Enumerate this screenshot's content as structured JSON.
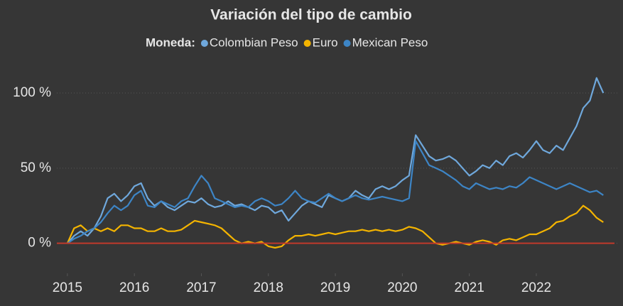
{
  "chart_data": {
    "type": "line",
    "title": "Variación del tipo de cambio",
    "legend_title": "Moneda:",
    "x": [
      2015.0,
      2015.1,
      2015.2,
      2015.3,
      2015.4,
      2015.5,
      2015.6,
      2015.7,
      2015.8,
      2015.9,
      2016.0,
      2016.1,
      2016.2,
      2016.3,
      2016.4,
      2016.5,
      2016.6,
      2016.7,
      2016.8,
      2016.9,
      2017.0,
      2017.1,
      2017.2,
      2017.3,
      2017.4,
      2017.5,
      2017.6,
      2017.7,
      2017.8,
      2017.9,
      2018.0,
      2018.1,
      2018.2,
      2018.3,
      2018.4,
      2018.5,
      2018.6,
      2018.7,
      2018.8,
      2018.9,
      2019.0,
      2019.1,
      2019.2,
      2019.3,
      2019.4,
      2019.5,
      2019.6,
      2019.7,
      2019.8,
      2019.9,
      2020.0,
      2020.1,
      2020.2,
      2020.3,
      2020.4,
      2020.5,
      2020.6,
      2020.7,
      2020.8,
      2020.9,
      2021.0,
      2021.1,
      2021.2,
      2021.3,
      2021.4,
      2021.5,
      2021.6,
      2021.7,
      2021.8,
      2021.9,
      2022.0,
      2022.1,
      2022.2,
      2022.3,
      2022.4,
      2022.5,
      2022.6,
      2022.7,
      2022.8,
      2022.9,
      2023.0
    ],
    "series": [
      {
        "name": "Colombian Peso",
        "color": "#6fa8dc",
        "values": [
          0,
          5,
          8,
          5,
          10,
          18,
          30,
          33,
          28,
          32,
          38,
          40,
          30,
          25,
          28,
          24,
          22,
          25,
          28,
          27,
          30,
          26,
          24,
          25,
          28,
          25,
          26,
          24,
          22,
          25,
          24,
          20,
          22,
          15,
          20,
          25,
          28,
          26,
          24,
          32,
          30,
          28,
          30,
          35,
          32,
          30,
          36,
          38,
          36,
          38,
          42,
          45,
          72,
          65,
          58,
          55,
          56,
          58,
          55,
          50,
          45,
          48,
          52,
          50,
          55,
          52,
          58,
          60,
          57,
          62,
          68,
          62,
          60,
          65,
          62,
          70,
          78,
          90,
          95,
          110,
          100
        ]
      },
      {
        "name": "Euro",
        "color": "#f4b400",
        "values": [
          0,
          10,
          12,
          8,
          10,
          8,
          10,
          8,
          12,
          12,
          10,
          10,
          8,
          8,
          10,
          8,
          8,
          9,
          12,
          15,
          14,
          13,
          12,
          10,
          6,
          2,
          0,
          1,
          0,
          1,
          -2,
          -3,
          -2,
          2,
          5,
          5,
          6,
          5,
          6,
          7,
          6,
          7,
          8,
          8,
          9,
          8,
          9,
          8,
          9,
          8,
          9,
          11,
          10,
          8,
          4,
          0,
          -1,
          0,
          1,
          0,
          -1,
          1,
          2,
          1,
          -1,
          2,
          3,
          2,
          4,
          6,
          6,
          8,
          10,
          14,
          15,
          18,
          20,
          25,
          22,
          17,
          14
        ]
      },
      {
        "name": "Mexican Peso",
        "color": "#3d85c6",
        "values": [
          0,
          3,
          5,
          8,
          10,
          14,
          20,
          25,
          22,
          25,
          32,
          35,
          25,
          24,
          28,
          26,
          24,
          28,
          30,
          38,
          45,
          40,
          30,
          28,
          26,
          24,
          25,
          24,
          28,
          30,
          28,
          25,
          26,
          30,
          35,
          30,
          28,
          27,
          30,
          33,
          30,
          28,
          30,
          32,
          30,
          29,
          30,
          31,
          30,
          29,
          28,
          30,
          68,
          60,
          52,
          50,
          48,
          45,
          42,
          38,
          36,
          40,
          38,
          36,
          37,
          36,
          38,
          37,
          40,
          44,
          42,
          40,
          38,
          36,
          38,
          40,
          38,
          36,
          34,
          35,
          32
        ]
      }
    ],
    "xlim": [
      2014.63,
      2023.22
    ],
    "xticks": [
      2015,
      2016,
      2017,
      2018,
      2019,
      2020,
      2021,
      2022
    ],
    "ylim": [
      -20,
      117
    ],
    "yticks": [
      {
        "value": 0,
        "label": "0 %"
      },
      {
        "value": 50,
        "label": "50 %"
      },
      {
        "value": 100,
        "label": "100 %"
      }
    ],
    "baseline_color": "#c0392b"
  }
}
